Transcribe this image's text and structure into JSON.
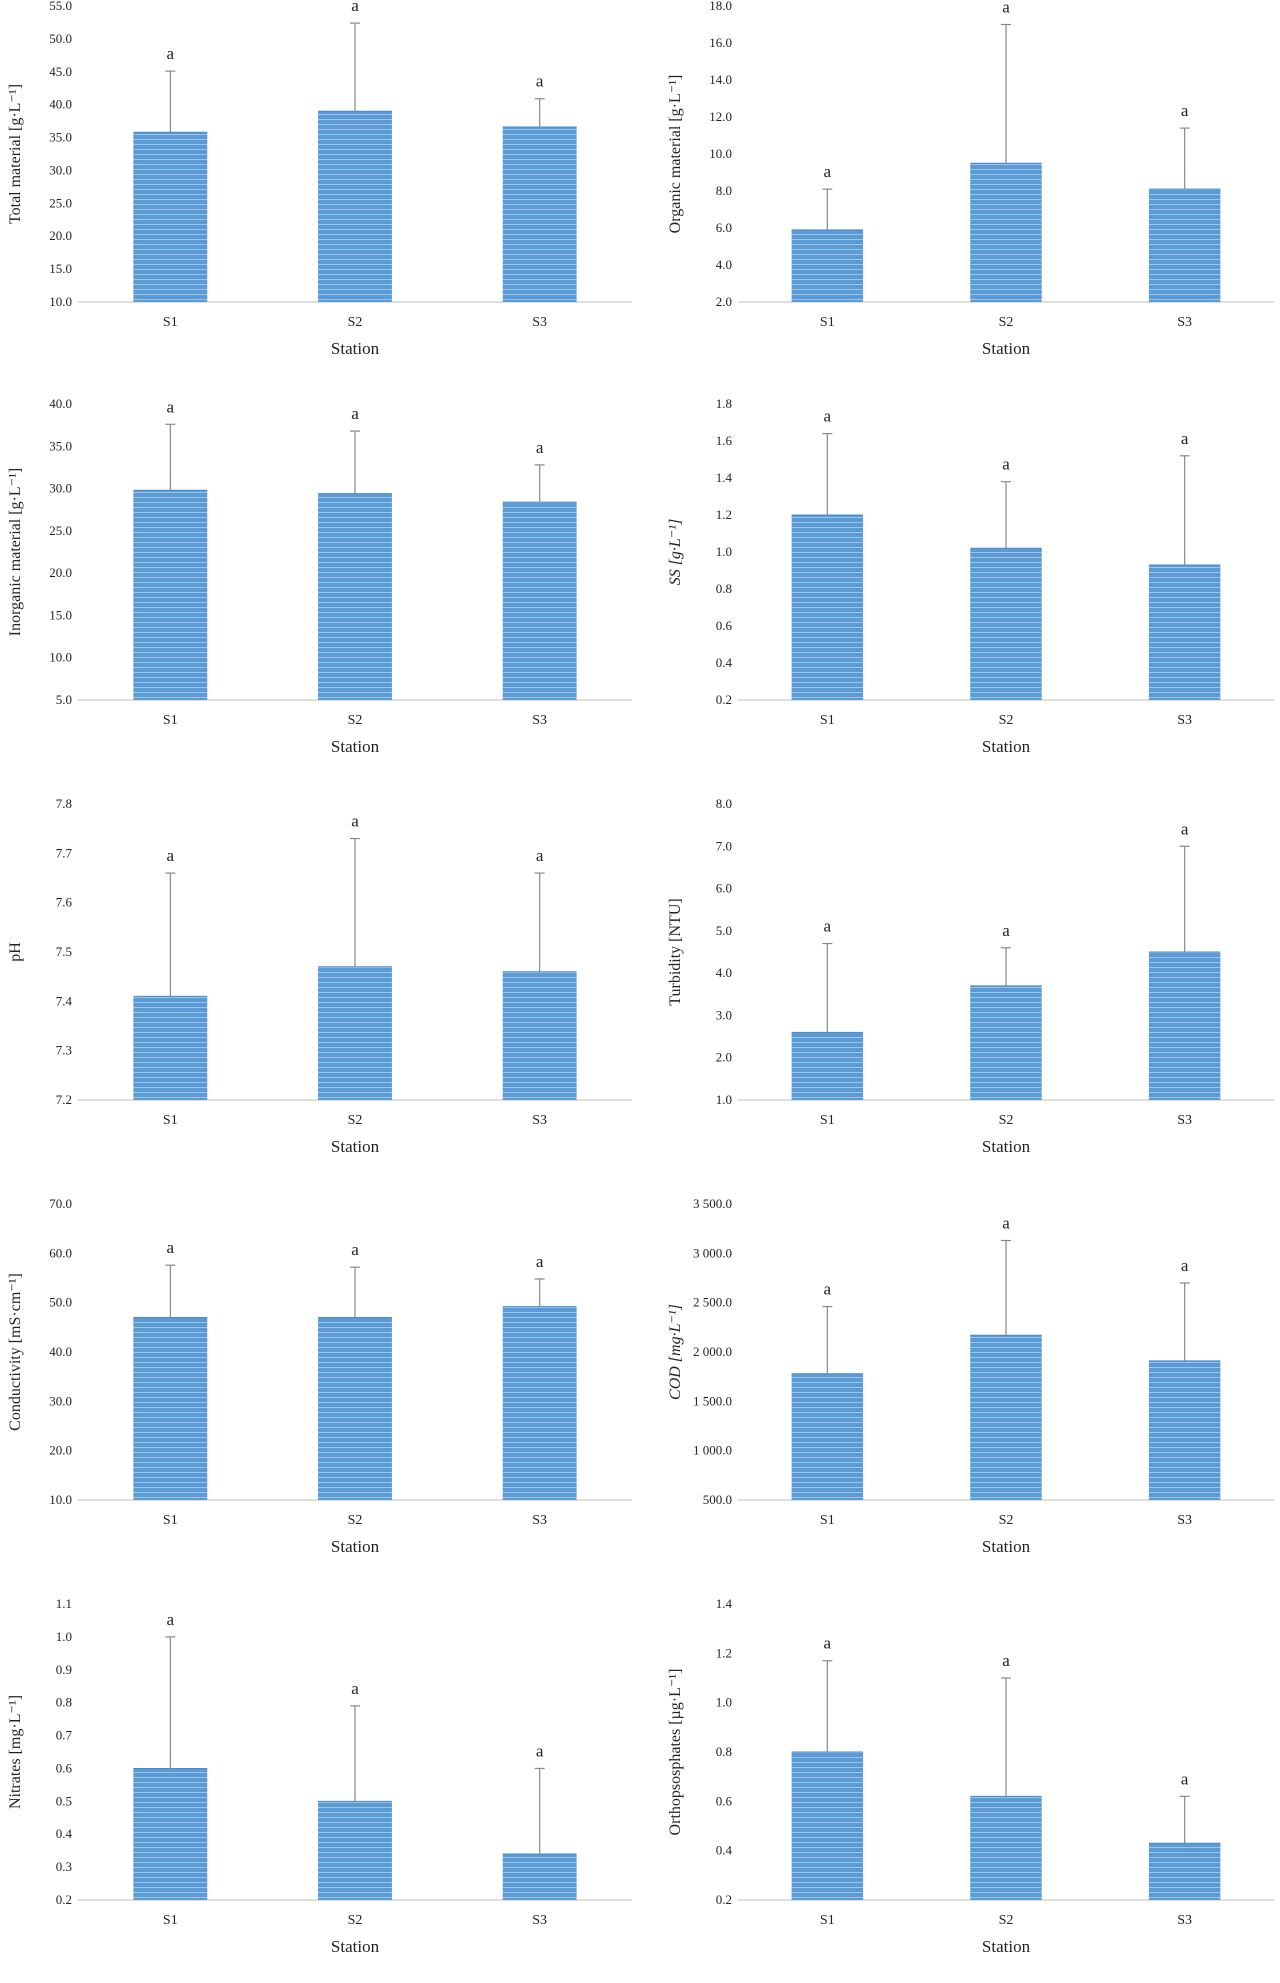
{
  "chart_data": [
    {
      "type": "bar",
      "categories": [
        "S1",
        "S2",
        "S3"
      ],
      "values": [
        35.8,
        39.0,
        36.6
      ],
      "error": [
        9.3,
        13.4,
        4.3
      ],
      "letters": [
        "a",
        "a",
        "a"
      ],
      "ylabel": "Total material [g·L⁻¹]",
      "xlabel": "Station",
      "ylim": [
        10,
        55
      ],
      "ticks": [
        "10.0",
        "15.0",
        "20.0",
        "25.0",
        "30.0",
        "35.0",
        "40.0",
        "45.0",
        "50.0",
        "55.0"
      ],
      "tick_values": [
        10,
        15,
        20,
        25,
        30,
        35,
        40,
        45,
        50,
        55
      ],
      "grid": false,
      "bar_color": "#5b9bd5"
    },
    {
      "type": "bar",
      "categories": [
        "S1",
        "S2",
        "S3"
      ],
      "values": [
        5.9,
        9.5,
        8.1
      ],
      "error": [
        2.2,
        7.5,
        3.3
      ],
      "letters": [
        "a",
        "a",
        "a"
      ],
      "ylabel": "Organic material [g·L⁻¹]",
      "xlabel": "Station",
      "ylim": [
        2,
        18
      ],
      "ticks": [
        "2.0",
        "4.0",
        "6.0",
        "8.0",
        "10.0",
        "12.0",
        "14.0",
        "16.0",
        "18.0"
      ],
      "tick_values": [
        2,
        4,
        6,
        8,
        10,
        12,
        14,
        16,
        18
      ],
      "grid": false,
      "bar_color": "#5b9bd5"
    },
    {
      "type": "bar",
      "categories": [
        "S1",
        "S2",
        "S3"
      ],
      "values": [
        29.8,
        29.4,
        28.4
      ],
      "error": [
        7.8,
        7.4,
        4.4
      ],
      "letters": [
        "a",
        "a",
        "a"
      ],
      "ylabel": "Inorganic material [g·L⁻¹]",
      "xlabel": "Station",
      "ylim": [
        5,
        40
      ],
      "ticks": [
        "5.0",
        "10.0",
        "15.0",
        "20.0",
        "25.0",
        "30.0",
        "35.0",
        "40.0"
      ],
      "tick_values": [
        5,
        10,
        15,
        20,
        25,
        30,
        35,
        40
      ],
      "grid": false,
      "bar_color": "#5b9bd5"
    },
    {
      "type": "bar",
      "categories": [
        "S1",
        "S2",
        "S3"
      ],
      "values": [
        1.2,
        1.02,
        0.93
      ],
      "error": [
        0.44,
        0.36,
        0.59
      ],
      "letters": [
        "a",
        "a",
        "a"
      ],
      "ylabel": "SS [g·L⁻¹]",
      "xlabel": "Station",
      "ylim": [
        0.2,
        1.8
      ],
      "ticks": [
        "0.2",
        "0.4",
        "0.6",
        "0.8",
        "1.0",
        "1.2",
        "1.4",
        "1.6",
        "1.8"
      ],
      "tick_values": [
        0.2,
        0.4,
        0.6,
        0.8,
        1.0,
        1.2,
        1.4,
        1.6,
        1.8
      ],
      "grid": false,
      "bar_color": "#5b9bd5"
    },
    {
      "type": "bar",
      "categories": [
        "S1",
        "S2",
        "S3"
      ],
      "values": [
        7.41,
        7.47,
        7.46
      ],
      "error": [
        0.25,
        0.26,
        0.2
      ],
      "letters": [
        "a",
        "a",
        "a"
      ],
      "ylabel": "pH",
      "xlabel": "Station",
      "ylim": [
        7.2,
        7.8
      ],
      "ticks": [
        "7.2",
        "7.3",
        "7.4",
        "7.5",
        "7.6",
        "7.7",
        "7.8"
      ],
      "tick_values": [
        7.2,
        7.3,
        7.4,
        7.5,
        7.6,
        7.7,
        7.8
      ],
      "grid": false,
      "bar_color": "#5b9bd5"
    },
    {
      "type": "bar",
      "categories": [
        "S1",
        "S2",
        "S3"
      ],
      "values": [
        2.6,
        3.7,
        4.5
      ],
      "error": [
        2.1,
        0.9,
        2.5
      ],
      "letters": [
        "a",
        "a",
        "a"
      ],
      "ylabel": "Turbidity [NTU]",
      "xlabel": "Station",
      "ylim": [
        1,
        8
      ],
      "ticks": [
        "1.0",
        "2.0",
        "3.0",
        "4.0",
        "5.0",
        "6.0",
        "7.0",
        "8.0"
      ],
      "tick_values": [
        1,
        2,
        3,
        4,
        5,
        6,
        7,
        8
      ],
      "grid": false,
      "bar_color": "#5b9bd5"
    },
    {
      "type": "bar",
      "categories": [
        "S1",
        "S2",
        "S3"
      ],
      "values": [
        47.0,
        47.0,
        49.2
      ],
      "error": [
        10.6,
        10.2,
        5.6
      ],
      "letters": [
        "a",
        "a",
        "a"
      ],
      "ylabel": "Conductivity [mS·cm⁻¹]",
      "xlabel": "Station",
      "ylim": [
        10,
        70
      ],
      "ticks": [
        "10.0",
        "20.0",
        "30.0",
        "40.0",
        "50.0",
        "60.0",
        "70.0"
      ],
      "tick_values": [
        10,
        20,
        30,
        40,
        50,
        60,
        70
      ],
      "grid": false,
      "bar_color": "#5b9bd5"
    },
    {
      "type": "bar",
      "categories": [
        "S1",
        "S2",
        "S3"
      ],
      "values": [
        1780,
        2170,
        1910
      ],
      "error": [
        680,
        960,
        790
      ],
      "letters": [
        "a",
        "a",
        "a"
      ],
      "ylabel": "COD [mg·L⁻¹]",
      "xlabel": "Station",
      "ylim": [
        500,
        3500
      ],
      "ticks": [
        "500.0",
        "1 000.0",
        "1 500.0",
        "2 000.0",
        "2 500.0",
        "3 000.0",
        "3 500.0"
      ],
      "tick_values": [
        500,
        1000,
        1500,
        2000,
        2500,
        3000,
        3500
      ],
      "grid": false,
      "bar_color": "#5b9bd5"
    },
    {
      "type": "bar",
      "categories": [
        "S1",
        "S2",
        "S3"
      ],
      "values": [
        0.6,
        0.5,
        0.34
      ],
      "error": [
        0.4,
        0.29,
        0.26
      ],
      "letters": [
        "a",
        "a",
        "a"
      ],
      "ylabel": "Nitrates [mg·L⁻¹]",
      "xlabel": "Station",
      "ylim": [
        0.2,
        1.1
      ],
      "ticks": [
        "0.2",
        "0.3",
        "0.4",
        "0.5",
        "0.6",
        "0.7",
        "0.8",
        "0.9",
        "1.0",
        "1.1"
      ],
      "tick_values": [
        0.2,
        0.3,
        0.4,
        0.5,
        0.6,
        0.7,
        0.8,
        0.9,
        1.0,
        1.1
      ],
      "grid": false,
      "bar_color": "#5b9bd5"
    },
    {
      "type": "bar",
      "categories": [
        "S1",
        "S2",
        "S3"
      ],
      "values": [
        0.8,
        0.62,
        0.43
      ],
      "error": [
        0.37,
        0.48,
        0.19
      ],
      "letters": [
        "a",
        "a",
        "a"
      ],
      "ylabel": "Orthopsosphates [µg·L⁻¹]",
      "xlabel": "Station",
      "ylim": [
        0.2,
        1.4
      ],
      "ticks": [
        "0.2",
        "0.4",
        "0.6",
        "0.8",
        "1.0",
        "1.2",
        "1.4"
      ],
      "tick_values": [
        0.2,
        0.4,
        0.6,
        0.8,
        1.0,
        1.2,
        1.4
      ],
      "grid": false,
      "bar_color": "#5b9bd5"
    }
  ]
}
